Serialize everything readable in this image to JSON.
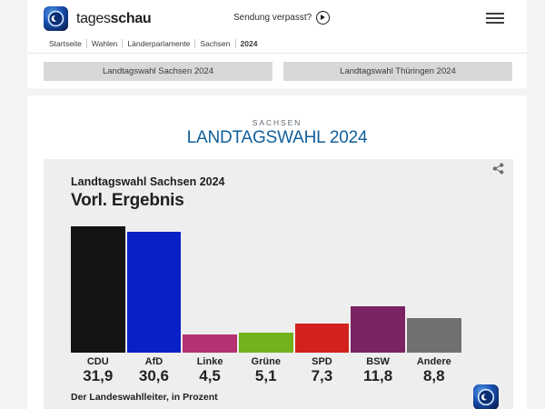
{
  "header": {
    "brand_normal": "tages",
    "brand_bold": "schau",
    "watch_link": "Sendung verpasst?"
  },
  "breadcrumb": [
    "Startseite",
    "Wahlen",
    "Länderparlamente",
    "Sachsen",
    "2024"
  ],
  "nav_buttons": [
    "Landtagswahl Sachsen 2024",
    "Landtagswahl Thüringen 2024"
  ],
  "page": {
    "kicker": "SACHSEN",
    "title": "LANDTAGSWAHL 2024",
    "title_color": "#11609c"
  },
  "chart_data": {
    "type": "bar",
    "title": "Landtagswahl Sachsen 2024",
    "subtitle": "Vorl. Ergebnis",
    "categories": [
      "CDU",
      "AfD",
      "Linke",
      "Grüne",
      "SPD",
      "BSW",
      "Andere"
    ],
    "values": [
      31.9,
      30.6,
      4.5,
      5.1,
      7.3,
      11.8,
      8.8
    ],
    "value_labels": [
      "31,9",
      "30,6",
      "4,5",
      "5,1",
      "7,3",
      "11,8",
      "8,8"
    ],
    "colors": [
      "#141414",
      "#0721c7",
      "#b43172",
      "#72b21c",
      "#d3221e",
      "#7c2364",
      "#707072"
    ],
    "source": "Der Landeswahlleiter, in Prozent",
    "ylim": [
      0,
      35
    ],
    "grid": false,
    "legend": false
  }
}
